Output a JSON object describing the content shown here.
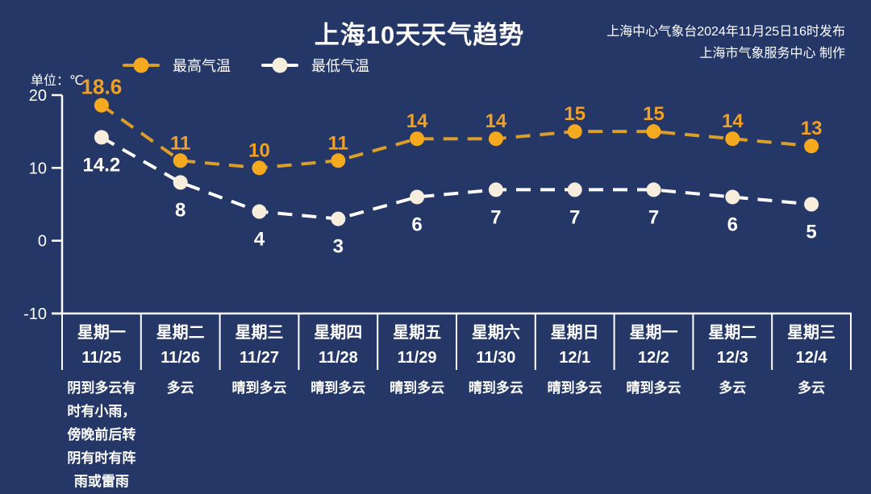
{
  "page": {
    "title": "上海10天天气趋势",
    "publisher_line1": "上海中心气象台2024年11月25日16时发布",
    "publisher_line2": "上海市气象服务中心 制作",
    "unit_label": "单位：℃"
  },
  "colors": {
    "background": "#253766",
    "text": "#FFFFFF",
    "high_line": "#D99E2B",
    "high_marker": "#F5A91E",
    "high_label": "#F0A125",
    "low_line": "#FFFFFF",
    "low_marker": "#F6EDDC",
    "low_label": "#FFFFFF",
    "axis": "#FFFFFF"
  },
  "legend": [
    {
      "label": "最高气温"
    },
    {
      "label": "最低气温"
    }
  ],
  "chart_data": {
    "type": "line",
    "title": "上海10天天气趋势",
    "line_style": "dashed",
    "grid": false,
    "legend_position": "top-left",
    "unit": "℃",
    "ylim": [
      -10,
      20
    ],
    "yticks": [
      20,
      10,
      0,
      -10
    ],
    "x_categories": [
      "星期一 11/25",
      "星期二 11/26",
      "星期三 11/27",
      "星期四 11/28",
      "星期五 11/29",
      "星期六 11/30",
      "星期日 12/1",
      "星期一 12/2",
      "星期二 12/3",
      "星期三 12/4"
    ],
    "series": [
      {
        "name": "最高气温",
        "values": [
          18.6,
          11,
          10,
          11,
          14,
          14,
          15,
          15,
          14,
          13
        ],
        "label_position": "above"
      },
      {
        "name": "最低气温",
        "values": [
          14.2,
          8,
          4,
          3,
          6,
          7,
          7,
          7,
          6,
          5
        ],
        "label_position": "below"
      }
    ]
  },
  "days": [
    {
      "weekday": "星期一",
      "date": "11/25",
      "weather": "阴到多云有时有小雨，傍晚前后转阴有时有阵雨或雷雨"
    },
    {
      "weekday": "星期二",
      "date": "11/26",
      "weather": "多云"
    },
    {
      "weekday": "星期三",
      "date": "11/27",
      "weather": "晴到多云"
    },
    {
      "weekday": "星期四",
      "date": "11/28",
      "weather": "晴到多云"
    },
    {
      "weekday": "星期五",
      "date": "11/29",
      "weather": "晴到多云"
    },
    {
      "weekday": "星期六",
      "date": "11/30",
      "weather": "晴到多云"
    },
    {
      "weekday": "星期日",
      "date": "12/1",
      "weather": "晴到多云"
    },
    {
      "weekday": "星期一",
      "date": "12/2",
      "weather": "晴到多云"
    },
    {
      "weekday": "星期二",
      "date": "12/3",
      "weather": "多云"
    },
    {
      "weekday": "星期三",
      "date": "12/4",
      "weather": "多云"
    }
  ]
}
